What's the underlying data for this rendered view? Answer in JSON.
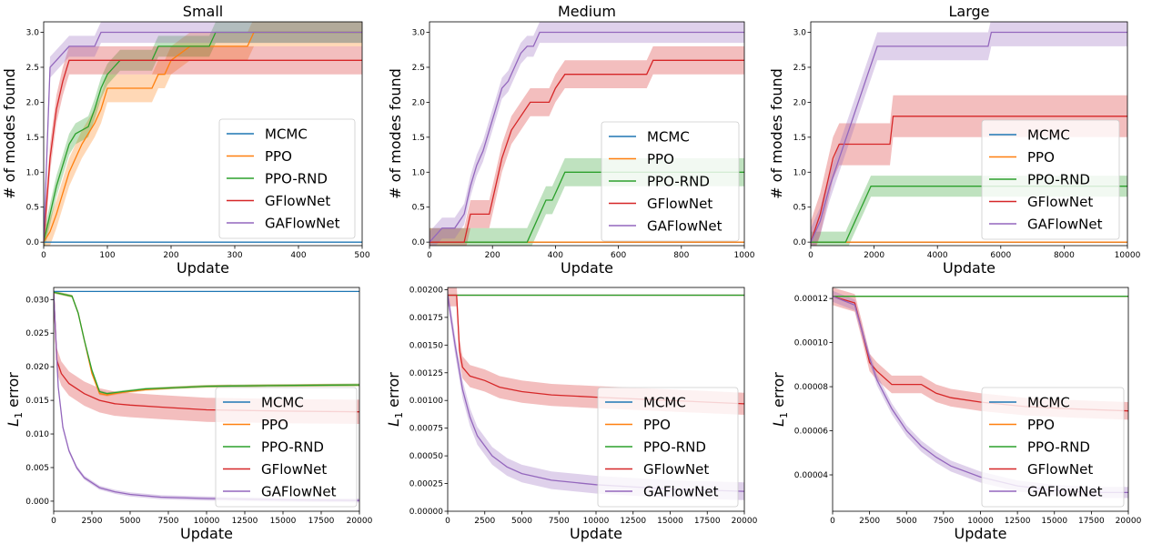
{
  "colors": {
    "MCMC": "#1f77b4",
    "PPO": "#ff7f0e",
    "PPO-RND": "#2ca02c",
    "GFlowNet": "#d62728",
    "GAFlowNet": "#9467bd"
  },
  "chart_data": [
    {
      "type": "line",
      "title": "Small",
      "xlabel": "Update",
      "ylabel": "# of modes found",
      "xlim": [
        0,
        500
      ],
      "ylim": [
        -0.05,
        3.15
      ],
      "xticks": [
        0,
        100,
        200,
        300,
        400,
        500
      ],
      "xtick_labels": [
        "0",
        "100",
        "200",
        "300",
        "400",
        "500"
      ],
      "yticks": [
        0,
        0.5,
        1,
        1.5,
        2,
        2.5,
        3
      ],
      "ytick_labels": [
        "0.0",
        "0.5",
        "1.0",
        "1.5",
        "2.0",
        "2.5",
        "3.0"
      ],
      "legend": "lower-right",
      "series": [
        {
          "name": "MCMC",
          "x": [
            0,
            500
          ],
          "y": [
            0,
            0
          ],
          "band": 0
        },
        {
          "name": "PPO",
          "x": [
            0,
            10,
            20,
            30,
            40,
            50,
            60,
            70,
            80,
            90,
            100,
            120,
            150,
            170,
            180,
            190,
            200,
            230,
            250,
            270,
            290,
            320,
            330,
            500
          ],
          "y": [
            0,
            0.15,
            0.4,
            0.7,
            1.0,
            1.2,
            1.4,
            1.55,
            1.7,
            1.9,
            2.2,
            2.2,
            2.2,
            2.2,
            2.4,
            2.4,
            2.6,
            2.8,
            2.8,
            2.8,
            2.8,
            2.8,
            3.0,
            3.0
          ],
          "band": 0.2
        },
        {
          "name": "PPO-RND",
          "x": [
            0,
            10,
            20,
            30,
            40,
            50,
            60,
            70,
            80,
            90,
            100,
            110,
            120,
            130,
            150,
            170,
            180,
            200,
            230,
            250,
            260,
            270,
            500
          ],
          "y": [
            0,
            0.4,
            0.8,
            1.1,
            1.4,
            1.55,
            1.6,
            1.65,
            1.9,
            2.2,
            2.4,
            2.5,
            2.6,
            2.6,
            2.6,
            2.6,
            2.8,
            2.8,
            2.8,
            2.8,
            2.8,
            3.0,
            3.0
          ],
          "band": 0.15
        },
        {
          "name": "GFlowNet",
          "x": [
            0,
            10,
            20,
            30,
            40,
            45,
            500
          ],
          "y": [
            0,
            1.2,
            1.9,
            2.3,
            2.6,
            2.6,
            2.6
          ],
          "band": 0.2
        },
        {
          "name": "GAFlowNet",
          "x": [
            0,
            10,
            20,
            30,
            40,
            50,
            80,
            90,
            500
          ],
          "y": [
            0,
            2.5,
            2.6,
            2.7,
            2.8,
            2.8,
            2.8,
            3.0,
            3.0
          ],
          "band": 0.15
        }
      ]
    },
    {
      "type": "line",
      "title": "Medium",
      "xlabel": "Update",
      "ylabel": "# of modes found",
      "xlim": [
        0,
        1000
      ],
      "ylim": [
        -0.05,
        3.15
      ],
      "xticks": [
        0,
        200,
        400,
        600,
        800,
        1000
      ],
      "xtick_labels": [
        "0",
        "200",
        "400",
        "600",
        "800",
        "1000"
      ],
      "yticks": [
        0,
        0.5,
        1,
        1.5,
        2,
        2.5,
        3
      ],
      "ytick_labels": [
        "0.0",
        "0.5",
        "1.0",
        "1.5",
        "2.0",
        "2.5",
        "3.0"
      ],
      "legend": "lower-right",
      "series": [
        {
          "name": "MCMC",
          "x": [
            0,
            1000
          ],
          "y": [
            0,
            0
          ],
          "band": 0
        },
        {
          "name": "PPO",
          "x": [
            0,
            1000
          ],
          "y": [
            0,
            0
          ],
          "band": 0
        },
        {
          "name": "PPO-RND",
          "x": [
            0,
            310,
            330,
            350,
            370,
            390,
            410,
            430,
            1000
          ],
          "y": [
            0,
            0,
            0.2,
            0.4,
            0.6,
            0.6,
            0.8,
            1.0,
            1.0
          ],
          "band": 0.2
        },
        {
          "name": "GFlowNet",
          "x": [
            0,
            110,
            130,
            190,
            210,
            230,
            260,
            290,
            320,
            350,
            380,
            400,
            430,
            690,
            710,
            1000
          ],
          "y": [
            0,
            0,
            0.4,
            0.4,
            0.8,
            1.2,
            1.6,
            1.8,
            2.0,
            2.0,
            2.0,
            2.2,
            2.4,
            2.4,
            2.6,
            2.6
          ],
          "band": 0.2
        },
        {
          "name": "GAFlowNet",
          "x": [
            0,
            40,
            80,
            110,
            130,
            150,
            170,
            190,
            210,
            230,
            250,
            270,
            290,
            310,
            330,
            350,
            1000
          ],
          "y": [
            0,
            0.2,
            0.2,
            0.4,
            0.8,
            1.1,
            1.3,
            1.6,
            1.9,
            2.2,
            2.3,
            2.5,
            2.7,
            2.8,
            2.8,
            3.0,
            3.0
          ],
          "band": 0.15
        }
      ]
    },
    {
      "type": "line",
      "title": "Large",
      "xlabel": "Update",
      "ylabel": "# of modes found",
      "xlim": [
        0,
        10000
      ],
      "ylim": [
        -0.05,
        3.15
      ],
      "xticks": [
        0,
        2000,
        4000,
        6000,
        8000,
        10000
      ],
      "xtick_labels": [
        "0",
        "2000",
        "4000",
        "6000",
        "8000",
        "10000"
      ],
      "yticks": [
        0,
        0.5,
        1,
        1.5,
        2,
        2.5,
        3
      ],
      "ytick_labels": [
        "0.0",
        "0.5",
        "1.0",
        "1.5",
        "2.0",
        "2.5",
        "3.0"
      ],
      "legend": "lower-right",
      "series": [
        {
          "name": "MCMC",
          "x": [
            0,
            10000
          ],
          "y": [
            0,
            0
          ],
          "band": 0
        },
        {
          "name": "PPO",
          "x": [
            0,
            10000
          ],
          "y": [
            0,
            0
          ],
          "band": 0
        },
        {
          "name": "PPO-RND",
          "x": [
            0,
            1100,
            1300,
            1500,
            1700,
            1900,
            2100,
            10000
          ],
          "y": [
            0,
            0,
            0.2,
            0.4,
            0.6,
            0.8,
            0.8,
            0.8
          ],
          "band": 0.15
        },
        {
          "name": "GFlowNet",
          "x": [
            0,
            300,
            500,
            700,
            900,
            1100,
            2500,
            2600,
            10000
          ],
          "y": [
            0,
            0.4,
            0.8,
            1.2,
            1.4,
            1.4,
            1.4,
            1.8,
            1.8
          ],
          "band": 0.3
        },
        {
          "name": "GAFlowNet",
          "x": [
            0,
            300,
            600,
            900,
            1200,
            1500,
            1800,
            2100,
            2400,
            5600,
            5700,
            10000
          ],
          "y": [
            0,
            0.3,
            0.8,
            1.2,
            1.6,
            2.0,
            2.4,
            2.8,
            2.8,
            2.8,
            3.0,
            3.0
          ],
          "band": 0.2
        }
      ]
    },
    {
      "type": "line",
      "title": "",
      "xlabel": "Update",
      "ylabel": "L1 error",
      "xlim": [
        0,
        20000
      ],
      "ylim": [
        -0.0015,
        0.0318
      ],
      "xticks": [
        0,
        2500,
        5000,
        7500,
        10000,
        12500,
        15000,
        17500,
        20000
      ],
      "xtick_labels": [
        "0",
        "2500",
        "5000",
        "7500",
        "10000",
        "12500",
        "15000",
        "17500",
        "20000"
      ],
      "yticks": [
        0,
        0.005,
        0.01,
        0.015,
        0.02,
        0.025,
        0.03
      ],
      "ytick_labels": [
        "0.000",
        "0.005",
        "0.010",
        "0.015",
        "0.020",
        "0.025",
        "0.030"
      ],
      "legend": "lower-right",
      "series": [
        {
          "name": "MCMC",
          "x": [
            0,
            20000
          ],
          "y": [
            0.0312,
            0.0312
          ],
          "band": 0
        },
        {
          "name": "PPO",
          "x": [
            0,
            1200,
            1600,
            2000,
            2500,
            3000,
            3500,
            4500,
            6000,
            8000,
            10000,
            14000,
            20000
          ],
          "y": [
            0.0311,
            0.0305,
            0.028,
            0.024,
            0.019,
            0.016,
            0.0158,
            0.0162,
            0.0166,
            0.0169,
            0.0171,
            0.0172,
            0.0173
          ],
          "band": 0.0002
        },
        {
          "name": "PPO-RND",
          "x": [
            0,
            1200,
            1600,
            2000,
            2500,
            3000,
            3500,
            4500,
            6000,
            8000,
            10000,
            14000,
            20000
          ],
          "y": [
            0.0311,
            0.0305,
            0.028,
            0.024,
            0.0195,
            0.0163,
            0.016,
            0.0163,
            0.0167,
            0.0169,
            0.0171,
            0.0172,
            0.0173
          ],
          "band": 0.0002
        },
        {
          "name": "GFlowNet",
          "x": [
            0,
            200,
            500,
            1000,
            2000,
            3000,
            4000,
            5000,
            7000,
            10000,
            15000,
            20000
          ],
          "y": [
            0.031,
            0.021,
            0.019,
            0.0175,
            0.016,
            0.015,
            0.0145,
            0.0143,
            0.014,
            0.0136,
            0.0134,
            0.0133
          ],
          "band": 0.0018
        },
        {
          "name": "GAFlowNet",
          "x": [
            0,
            300,
            600,
            1000,
            1500,
            2000,
            3000,
            4000,
            5000,
            7000,
            10000,
            15000,
            20000
          ],
          "y": [
            0.031,
            0.017,
            0.011,
            0.0075,
            0.005,
            0.0035,
            0.002,
            0.0014,
            0.001,
            0.0006,
            0.0004,
            0.0002,
            0.0001
          ],
          "band": 0.0003
        }
      ]
    },
    {
      "type": "line",
      "title": "",
      "xlabel": "Update",
      "ylabel": "L1 error",
      "xlim": [
        0,
        20000
      ],
      "ylim": [
        0,
        0.00202
      ],
      "xticks": [
        0,
        2500,
        5000,
        7500,
        10000,
        12500,
        15000,
        17500,
        20000
      ],
      "xtick_labels": [
        "0",
        "2500",
        "5000",
        "7500",
        "10000",
        "12500",
        "15000",
        "17500",
        "20000"
      ],
      "yticks": [
        0,
        0.00025,
        0.0005,
        0.00075,
        0.001,
        0.00125,
        0.0015,
        0.00175,
        0.002
      ],
      "ytick_labels": [
        "0.00000",
        "0.00025",
        "0.00050",
        "0.00075",
        "0.00100",
        "0.00125",
        "0.00150",
        "0.00175",
        "0.00200"
      ],
      "legend": "lower-right",
      "series": [
        {
          "name": "MCMC",
          "x": [
            0,
            20000
          ],
          "y": [
            0.00195,
            0.00195
          ],
          "band": 0
        },
        {
          "name": "PPO",
          "x": [
            0,
            20000
          ],
          "y": [
            0.00195,
            0.00195
          ],
          "band": 0
        },
        {
          "name": "PPO-RND",
          "x": [
            0,
            20000
          ],
          "y": [
            0.00195,
            0.00195
          ],
          "band": 0
        },
        {
          "name": "GFlowNet",
          "x": [
            0,
            600,
            800,
            1000,
            1500,
            2500,
            3500,
            5000,
            7000,
            10000,
            15000,
            20000
          ],
          "y": [
            0.00195,
            0.00195,
            0.00145,
            0.0013,
            0.00122,
            0.00118,
            0.00112,
            0.00108,
            0.00105,
            0.00103,
            0.001,
            0.00097
          ],
          "band": 0.0001
        },
        {
          "name": "GAFlowNet",
          "x": [
            0,
            500,
            1000,
            1500,
            2000,
            3000,
            4000,
            5000,
            7000,
            10000,
            15000,
            20000
          ],
          "y": [
            0.00195,
            0.0015,
            0.0011,
            0.00085,
            0.00068,
            0.0005,
            0.0004,
            0.00034,
            0.00028,
            0.00024,
            0.0002,
            0.00018
          ],
          "band": 8e-05
        }
      ]
    },
    {
      "type": "line",
      "title": "",
      "xlabel": "Update",
      "ylabel": "L1 error",
      "xlim": [
        0,
        20000
      ],
      "ylim": [
        2.35e-05,
        0.000125
      ],
      "xticks": [
        0,
        2500,
        5000,
        7500,
        10000,
        12500,
        15000,
        17500,
        20000
      ],
      "xtick_labels": [
        "0",
        "2500",
        "5000",
        "7500",
        "10000",
        "12500",
        "15000",
        "17500",
        "20000"
      ],
      "yticks": [
        4e-05,
        6e-05,
        8e-05,
        0.0001,
        0.00012
      ],
      "ytick_labels": [
        "0.00004",
        "0.00006",
        "0.00008",
        "0.00010",
        "0.00012"
      ],
      "legend": "lower-right",
      "series": [
        {
          "name": "MCMC",
          "x": [
            0,
            20000
          ],
          "y": [
            0.000121,
            0.000121
          ],
          "band": 0
        },
        {
          "name": "PPO",
          "x": [
            0,
            20000
          ],
          "y": [
            0.000121,
            0.000121
          ],
          "band": 0
        },
        {
          "name": "PPO-RND",
          "x": [
            0,
            20000
          ],
          "y": [
            0.000121,
            0.000121
          ],
          "band": 0
        },
        {
          "name": "GFlowNet",
          "x": [
            0,
            1500,
            2000,
            2500,
            3000,
            4000,
            5000,
            6000,
            7000,
            8000,
            10000,
            13000,
            16000,
            20000
          ],
          "y": [
            0.000121,
            0.000118,
            0.000105,
            9.1e-05,
            8.7e-05,
            8.1e-05,
            8.1e-05,
            8.1e-05,
            7.7e-05,
            7.5e-05,
            7.3e-05,
            7.1e-05,
            7e-05,
            6.9e-05
          ],
          "band": 4e-06
        },
        {
          "name": "GAFlowNet",
          "x": [
            0,
            1500,
            2000,
            2500,
            3000,
            4000,
            5000,
            6000,
            7000,
            8000,
            10000,
            12500,
            15000,
            17500,
            20000
          ],
          "y": [
            0.000121,
            0.000117,
            0.000105,
            9.3e-05,
            8.3e-05,
            7e-05,
            6e-05,
            5.3e-05,
            4.8e-05,
            4.4e-05,
            3.9e-05,
            3.5e-05,
            3.3e-05,
            3.2e-05,
            3.2e-05
          ],
          "band": 2.5e-06
        }
      ]
    }
  ]
}
